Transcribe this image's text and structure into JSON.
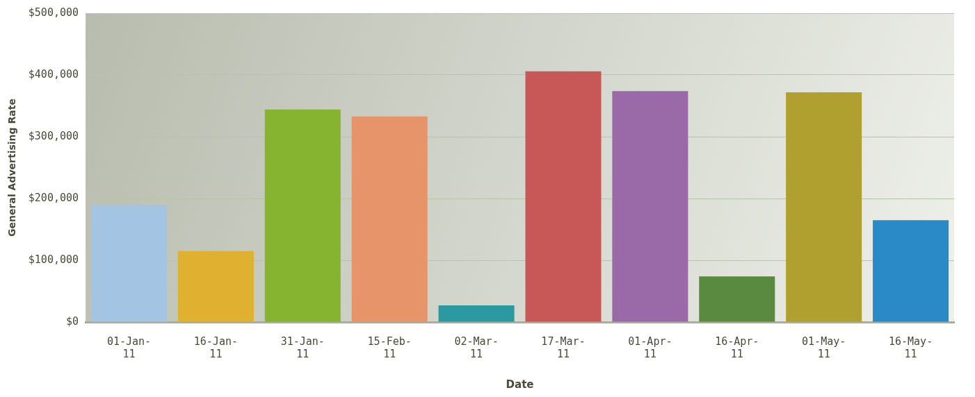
{
  "chart_data": {
    "type": "bar",
    "xlabel": "Date",
    "ylabel": "General Advertising Rate",
    "categories": [
      "01-Jan-11",
      "16-Jan-11",
      "31-Jan-11",
      "15-Feb-11",
      "02-Mar-11",
      "17-Mar-11",
      "01-Apr-11",
      "16-Apr-11",
      "01-May-11",
      "16-May-11"
    ],
    "values": [
      190000,
      115000,
      344000,
      333000,
      27000,
      406000,
      374000,
      74000,
      372000,
      165000
    ],
    "colors": [
      "#a4c4e4",
      "#e0b030",
      "#86b430",
      "#e8946a",
      "#2a9aa0",
      "#c85858",
      "#9a6aa8",
      "#5a8a40",
      "#b0a030",
      "#2a8ac8"
    ],
    "ylim": [
      0,
      500000
    ],
    "yticks": [
      {
        "value": 0,
        "label": "$0"
      },
      {
        "value": 100000,
        "label": "$100,000"
      },
      {
        "value": 200000,
        "label": "$200,000"
      },
      {
        "value": 300000,
        "label": "$300,000"
      },
      {
        "value": 400000,
        "label": "$400,000"
      },
      {
        "value": 500000,
        "label": "$500,000"
      }
    ],
    "grid": "y",
    "legend": false
  }
}
